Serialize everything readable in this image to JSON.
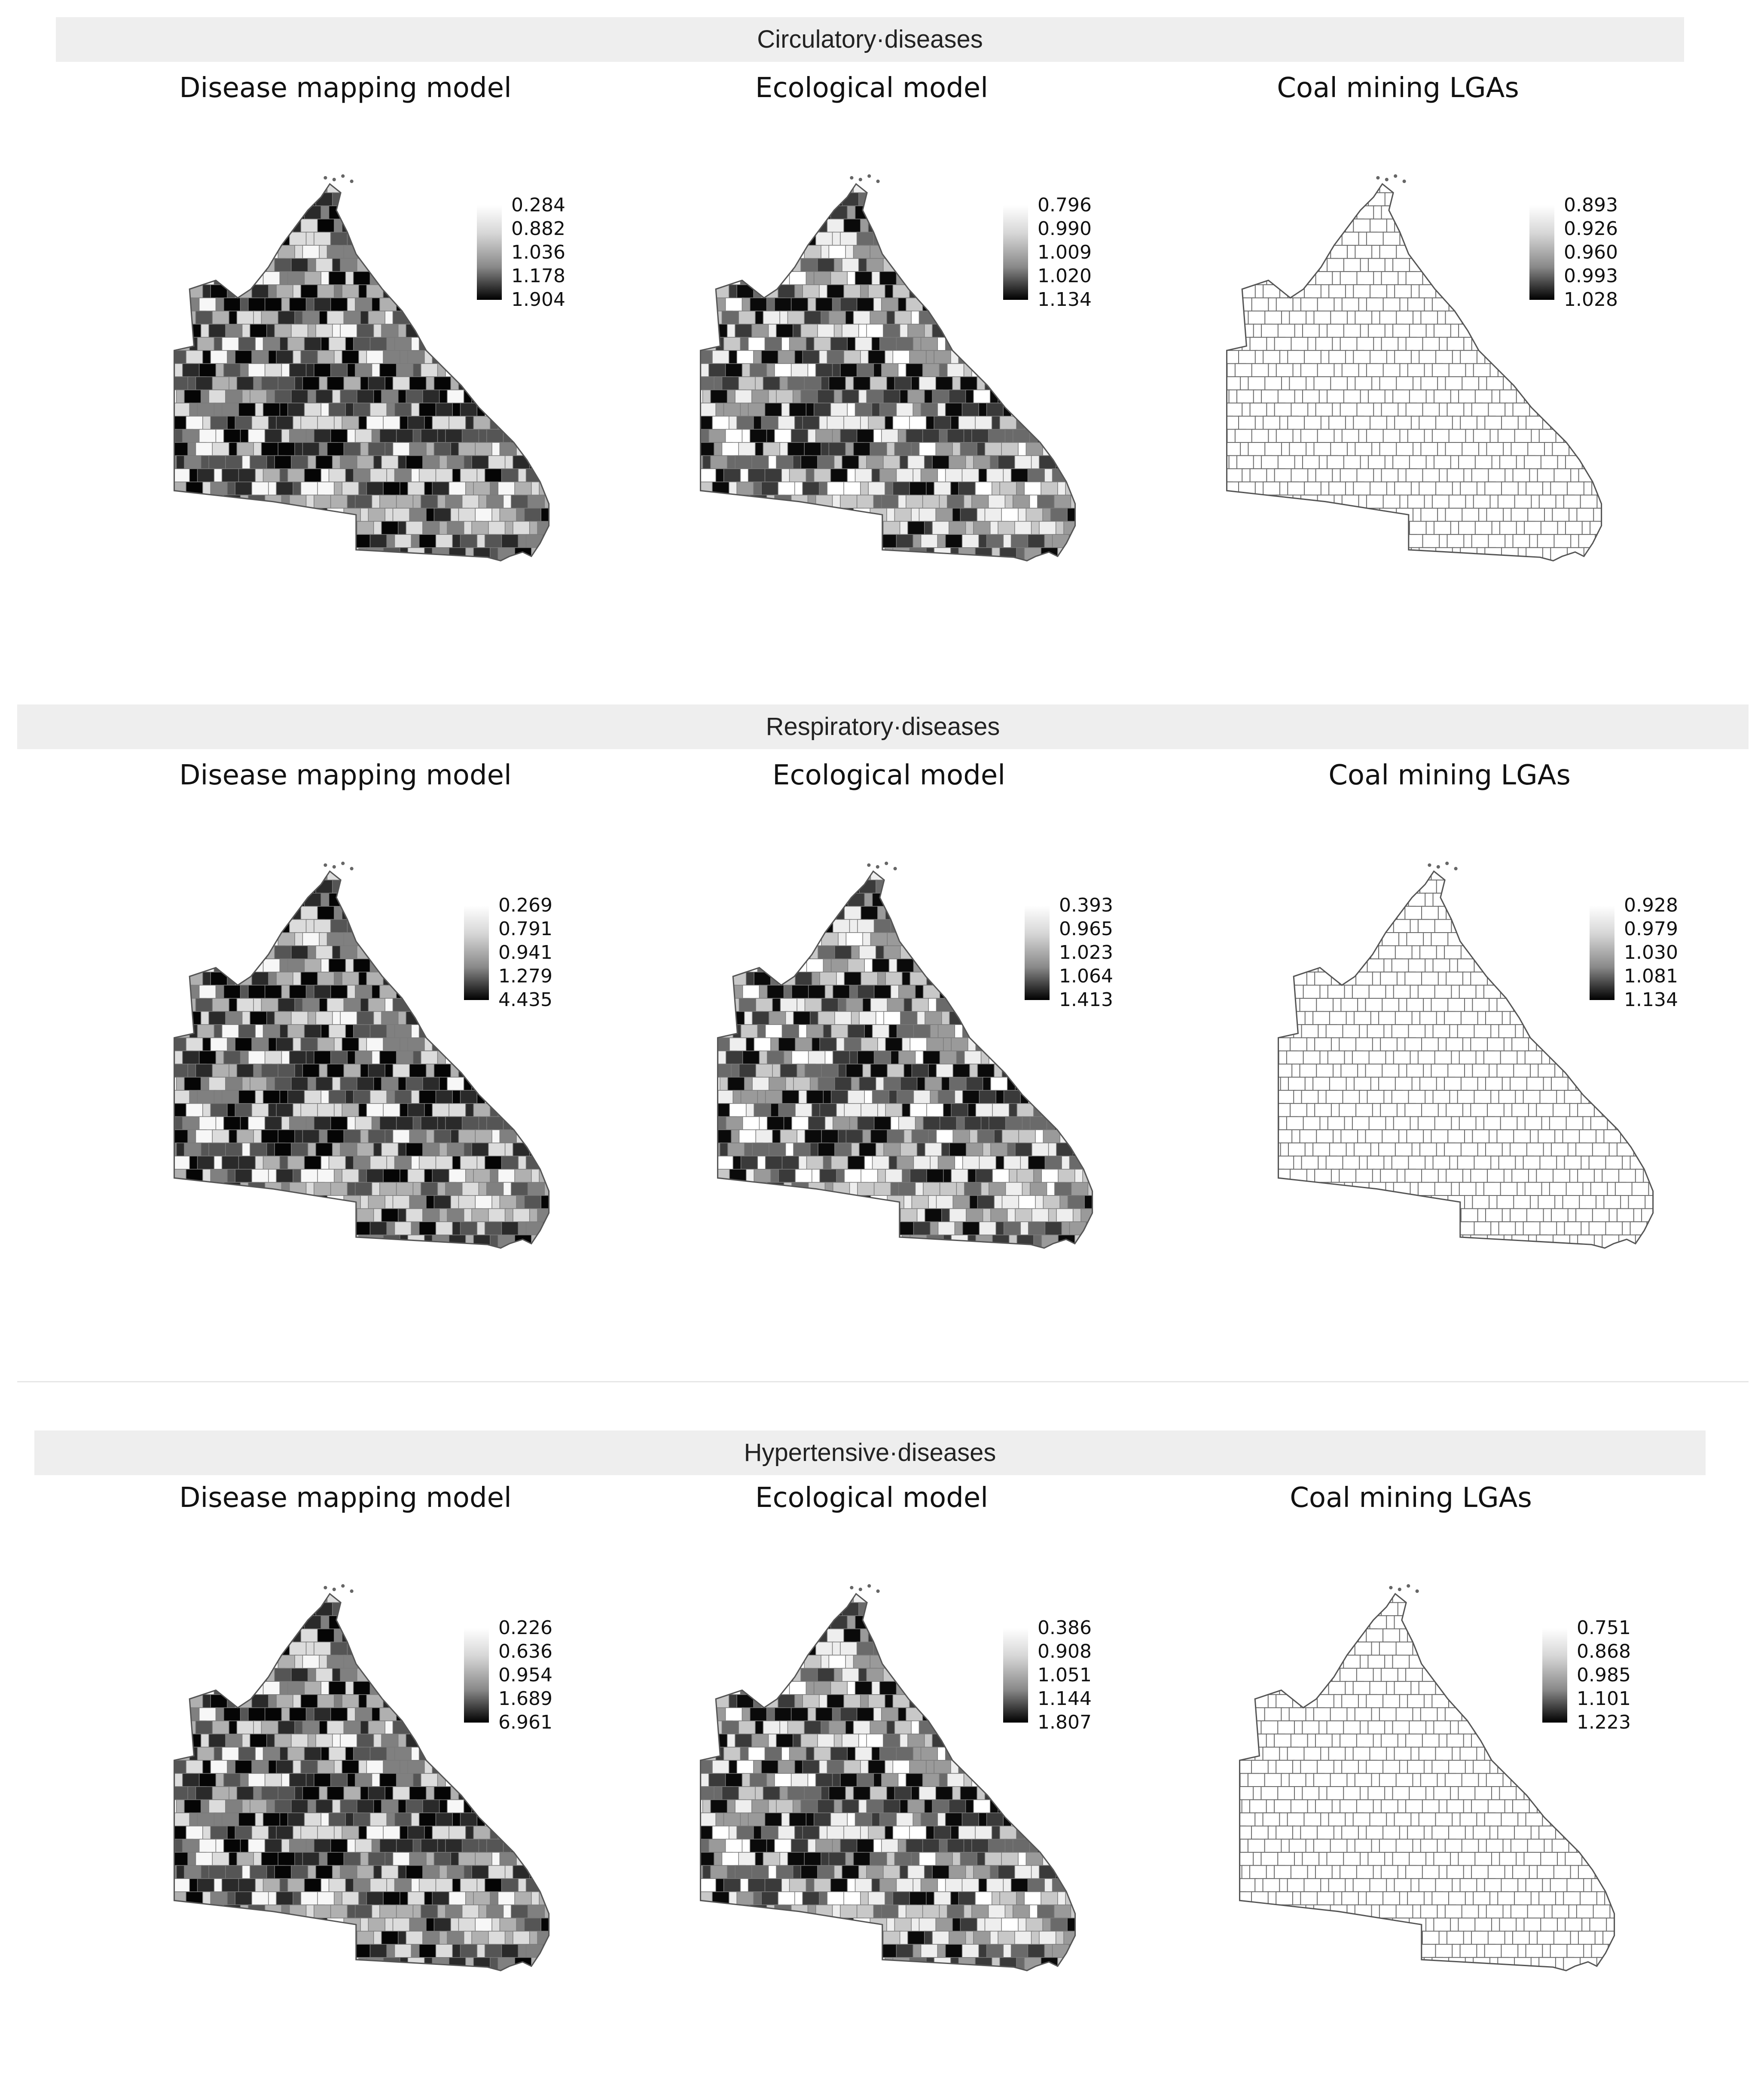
{
  "sections": [
    {
      "banner": "Circulatory·diseases",
      "panels": [
        {
          "title": "Disease mapping model",
          "legend": [
            "0.284",
            "0.882",
            "1.036",
            "1.178",
            "1.904"
          ]
        },
        {
          "title": "Ecological model",
          "legend": [
            "0.796",
            "0.990",
            "1.009",
            "1.020",
            "1.134"
          ]
        },
        {
          "title": "Coal mining LGAs",
          "legend": [
            "0.893",
            "0.926",
            "0.960",
            "0.993",
            "1.028"
          ]
        }
      ]
    },
    {
      "banner": "Respiratory·diseases",
      "panels": [
        {
          "title": "Disease mapping model",
          "legend": [
            "0.269",
            "0.791",
            "0.941",
            "1.279",
            "4.435"
          ]
        },
        {
          "title": "Ecological model",
          "legend": [
            "0.393",
            "0.965",
            "1.023",
            "1.064",
            "1.413"
          ]
        },
        {
          "title": "Coal mining LGAs",
          "legend": [
            "0.928",
            "0.979",
            "1.030",
            "1.081",
            "1.134"
          ]
        }
      ]
    },
    {
      "banner": "Hypertensive·diseases",
      "panels": [
        {
          "title": "Disease mapping model",
          "legend": [
            "0.226",
            "0.636",
            "0.954",
            "1.689",
            "6.961"
          ]
        },
        {
          "title": "Ecological model",
          "legend": [
            "0.386",
            "0.908",
            "1.051",
            "1.144",
            "1.807"
          ]
        },
        {
          "title": "Coal mining LGAs",
          "legend": [
            "0.751",
            "0.868",
            "0.985",
            "1.101",
            "1.223"
          ]
        }
      ]
    }
  ]
}
